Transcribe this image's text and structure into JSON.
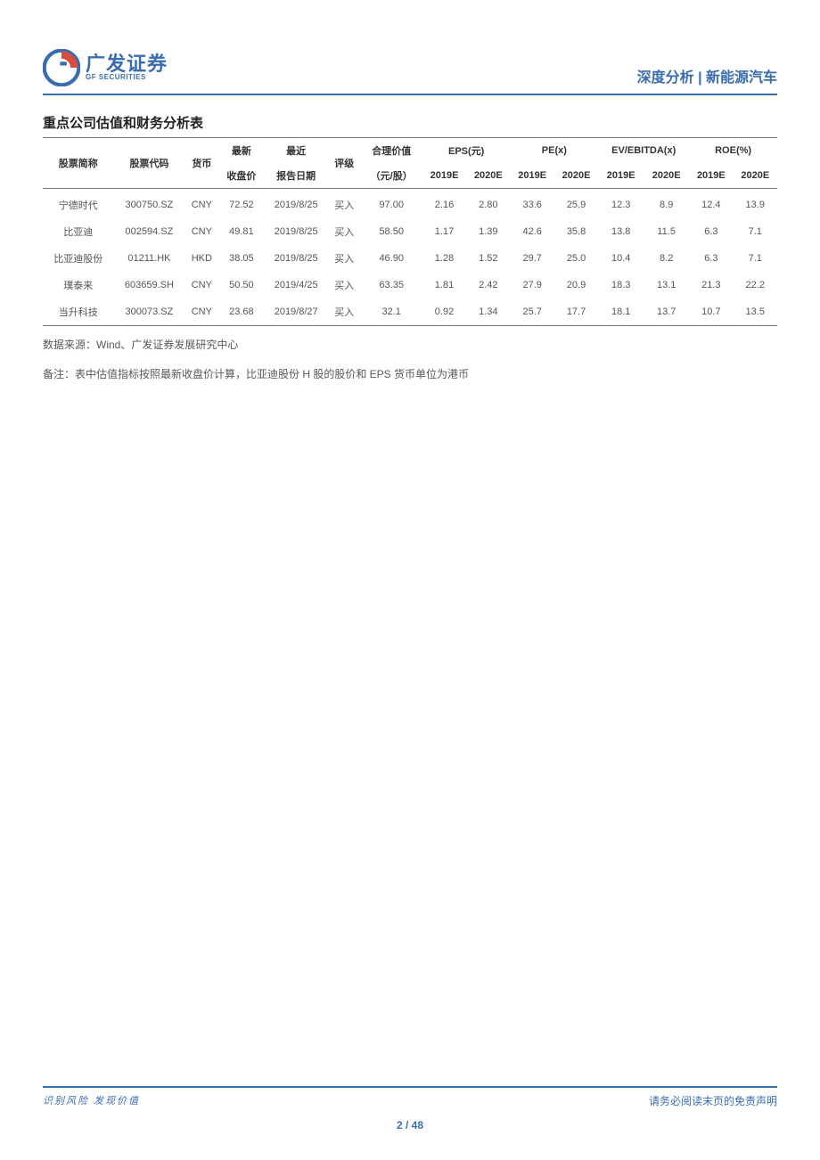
{
  "header": {
    "logo_cn": "广发证券",
    "logo_en": "GF SECURITIES",
    "breadcrumb": "深度分析 | 新能源汽车"
  },
  "section": {
    "title": "重点公司估值和财务分析表"
  },
  "table": {
    "columns": {
      "name": "股票简称",
      "code": "股票代码",
      "currency": "货币",
      "price_top": "最新",
      "price_bottom": "收盘价",
      "date_top": "最近",
      "date_bottom": "报告日期",
      "rating": "评级",
      "fair_top": "合理价值",
      "fair_bottom": "（元/股）",
      "eps_group": "EPS(元)",
      "pe_group": "PE(x)",
      "evebitda_group": "EV/EBITDA(x)",
      "roe_group": "ROE(%)",
      "y2019": "2019E",
      "y2020": "2020E"
    },
    "rows": [
      {
        "name": "宁德时代",
        "code": "300750.SZ",
        "currency": "CNY",
        "price": "72.52",
        "date": "2019/8/25",
        "rating": "买入",
        "fair": "97.00",
        "eps19": "2.16",
        "eps20": "2.80",
        "pe19": "33.6",
        "pe20": "25.9",
        "ev19": "12.3",
        "ev20": "8.9",
        "roe19": "12.4",
        "roe20": "13.9"
      },
      {
        "name": "比亚迪",
        "code": "002594.SZ",
        "currency": "CNY",
        "price": "49.81",
        "date": "2019/8/25",
        "rating": "买入",
        "fair": "58.50",
        "eps19": "1.17",
        "eps20": "1.39",
        "pe19": "42.6",
        "pe20": "35.8",
        "ev19": "13.8",
        "ev20": "11.5",
        "roe19": "6.3",
        "roe20": "7.1"
      },
      {
        "name": "比亚迪股份",
        "code": "01211.HK",
        "currency": "HKD",
        "price": "38.05",
        "date": "2019/8/25",
        "rating": "买入",
        "fair": "46.90",
        "eps19": "1.28",
        "eps20": "1.52",
        "pe19": "29.7",
        "pe20": "25.0",
        "ev19": "10.4",
        "ev20": "8.2",
        "roe19": "6.3",
        "roe20": "7.1"
      },
      {
        "name": "璞泰来",
        "code": "603659.SH",
        "currency": "CNY",
        "price": "50.50",
        "date": "2019/4/25",
        "rating": "买入",
        "fair": "63.35",
        "eps19": "1.81",
        "eps20": "2.42",
        "pe19": "27.9",
        "pe20": "20.9",
        "ev19": "18.3",
        "ev20": "13.1",
        "roe19": "21.3",
        "roe20": "22.2"
      },
      {
        "name": "当升科技",
        "code": "300073.SZ",
        "currency": "CNY",
        "price": "23.68",
        "date": "2019/8/27",
        "rating": "买入",
        "fair": "32.1",
        "eps19": "0.92",
        "eps20": "1.34",
        "pe19": "25.7",
        "pe20": "17.7",
        "ev19": "18.1",
        "ev20": "13.7",
        "roe19": "10.7",
        "roe20": "13.5"
      }
    ]
  },
  "notes": {
    "source": "数据来源：Wind、广发证券发展研究中心",
    "remark": "备注：表中估值指标按照最新收盘价计算，比亚迪股份 H 股的股价和 EPS 货币单位为港币"
  },
  "footer": {
    "slogan": "识别风险  发现价值",
    "disclaimer": "请务必阅读末页的免责声明",
    "page": "2 / 48"
  },
  "style": {
    "brand_color": "#3a6db0",
    "text_color": "#333333",
    "muted_text": "#585858",
    "border_color": "#777777",
    "body_font_size": 11,
    "title_font_size": 15
  }
}
